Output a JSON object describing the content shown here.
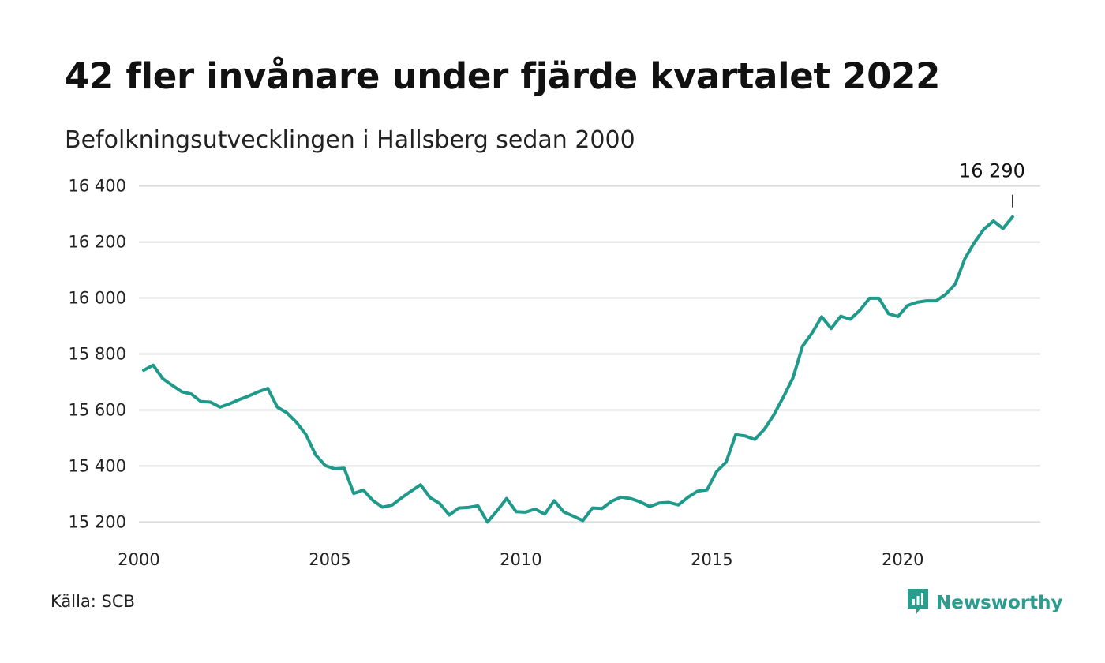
{
  "title": "42 fler invånare under fjärde kvartalet 2022",
  "subtitle": "Befolkningsutvecklingen i Hallsberg sedan 2000",
  "source": "Källa: SCB",
  "brand": {
    "name": "Newsworthy",
    "icon": "newsworthy-logo-icon",
    "color": "#2a9d8f"
  },
  "chart_data": {
    "type": "line",
    "title": "42 fler invånare under fjärde kvartalet 2022",
    "subtitle": "Befolkningsutvecklingen i Hallsberg sedan 2000",
    "xlim": [
      2000,
      2023.6
    ],
    "ylim": [
      15170,
      16430
    ],
    "x_ticks": [
      2000,
      2005,
      2010,
      2015,
      2020
    ],
    "x_tick_labels": [
      "2000",
      "2005",
      "2010",
      "2015",
      "2020"
    ],
    "y_ticks": [
      15200,
      15400,
      15600,
      15800,
      16000,
      16200,
      16400
    ],
    "y_tick_labels": [
      "15 200",
      "15 400",
      "15 600",
      "15 800",
      "16 000",
      "16 200",
      "16 400"
    ],
    "grid": true,
    "line_color": "#1f9a8a",
    "annotation": {
      "label": "16 290",
      "target": "last_point"
    },
    "series": [
      {
        "x": [
          2000.125,
          2000.375,
          2000.625,
          2000.875,
          2001.125,
          2001.375,
          2001.625,
          2001.875,
          2002.125,
          2002.375,
          2002.625,
          2002.875,
          2003.125,
          2003.375,
          2003.625,
          2003.875,
          2004.125,
          2004.375,
          2004.625,
          2004.875,
          2005.125,
          2005.375,
          2005.625,
          2005.875,
          2006.125,
          2006.375,
          2006.625,
          2006.875,
          2007.125,
          2007.375,
          2007.625,
          2007.875,
          2008.125,
          2008.375,
          2008.625,
          2008.875,
          2009.125,
          2009.375,
          2009.625,
          2009.875,
          2010.125,
          2010.375,
          2010.625,
          2010.875,
          2011.125,
          2011.375,
          2011.625,
          2011.875,
          2012.125,
          2012.375,
          2012.625,
          2012.875,
          2013.125,
          2013.375,
          2013.625,
          2013.875,
          2014.125,
          2014.375,
          2014.625,
          2014.875,
          2015.125,
          2015.375,
          2015.625,
          2015.875,
          2016.125,
          2016.375,
          2016.625,
          2016.875,
          2017.125,
          2017.375,
          2017.625,
          2017.875,
          2018.125,
          2018.375,
          2018.625,
          2018.875,
          2019.125,
          2019.375,
          2019.625,
          2019.875,
          2020.125,
          2020.375,
          2020.625,
          2020.875,
          2021.125,
          2021.375,
          2021.625,
          2021.875,
          2022.125,
          2022.375,
          2022.625,
          2022.875
        ],
        "y": [
          15742,
          15760,
          15712,
          15688,
          15665,
          15657,
          15630,
          15628,
          15610,
          15622,
          15637,
          15650,
          15665,
          15677,
          15610,
          15590,
          15556,
          15512,
          15440,
          15402,
          15390,
          15392,
          15302,
          15314,
          15277,
          15253,
          15260,
          15286,
          15310,
          15333,
          15287,
          15266,
          15225,
          15250,
          15252,
          15258,
          15200,
          15240,
          15284,
          15237,
          15235,
          15246,
          15228,
          15276,
          15236,
          15221,
          15205,
          15250,
          15248,
          15274,
          15289,
          15284,
          15272,
          15255,
          15268,
          15270,
          15261,
          15288,
          15310,
          15315,
          15380,
          15414,
          15512,
          15507,
          15495,
          15531,
          15583,
          15647,
          15715,
          15828,
          15875,
          15933,
          15891,
          15935,
          15924,
          15956,
          15999,
          15999,
          15944,
          15934,
          15973,
          15985,
          15990,
          15990,
          16013,
          16050,
          16140,
          16198,
          16246,
          16275,
          16248,
          16290
        ]
      }
    ]
  }
}
